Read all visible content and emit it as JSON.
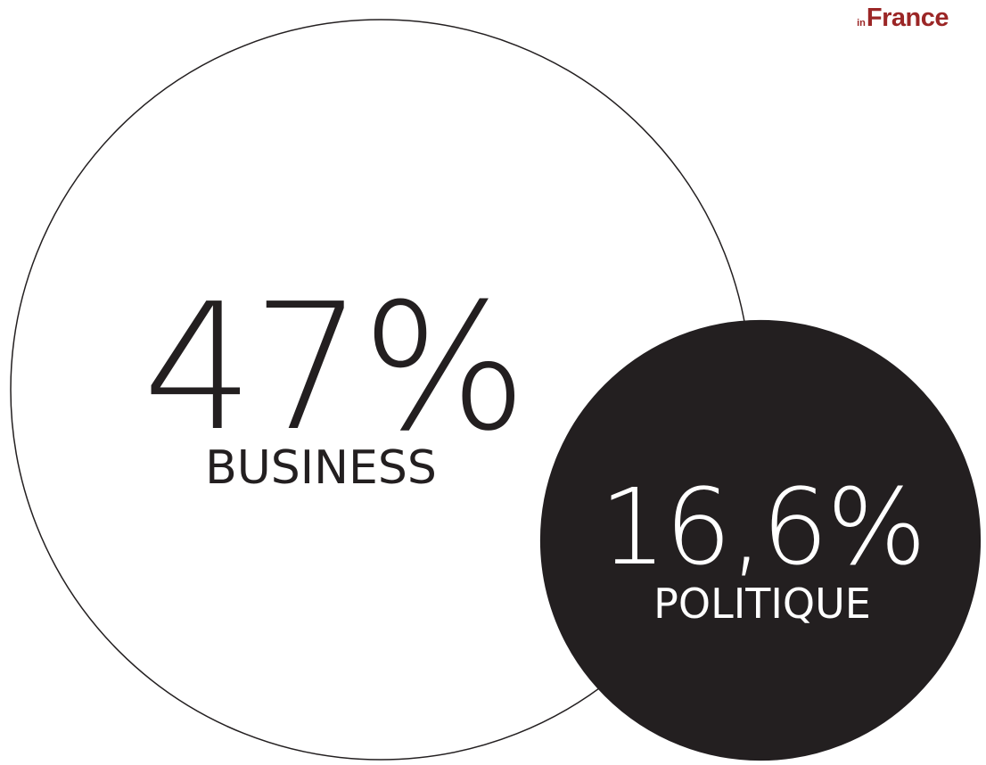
{
  "brand": {
    "small": "in",
    "name": "France",
    "color": "#9b2626"
  },
  "chart_data": {
    "type": "bubble",
    "title": "",
    "items": [
      {
        "label": "BUSINESS",
        "value": 47,
        "value_text": "47%",
        "style": "outline",
        "color": "#231f20"
      },
      {
        "label": "POLITIQUE",
        "value": 16.6,
        "value_text": "16,6%",
        "style": "filled",
        "color": "#231f20"
      }
    ]
  }
}
